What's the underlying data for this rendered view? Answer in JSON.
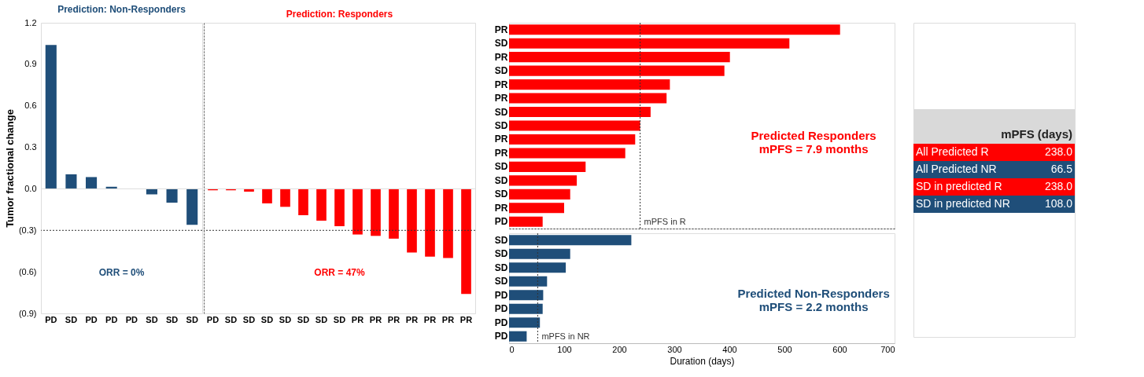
{
  "chart_data": [
    {
      "type": "bar",
      "title": "Prediction: Non-Responders",
      "ylabel": "Tumor fractional change",
      "categories": [
        "PD",
        "SD",
        "PD",
        "PD",
        "PD",
        "SD",
        "SD",
        "SD"
      ],
      "values": [
        1.04,
        0.105,
        0.085,
        0.015,
        0,
        -0.04,
        -0.1,
        -0.26
      ],
      "colors": [
        "#1f4e79",
        "#1f4e79",
        "#1f4e79",
        "#1f4e79",
        "#1f4e79",
        "#1f4e79",
        "#1f4e79",
        "#1f4e79"
      ],
      "ylim": [
        -0.9,
        1.2
      ],
      "yticks": [
        1.2,
        0.9,
        0.6,
        0.3,
        {
          "value": 0,
          "label": "0.0"
        },
        {
          "value": -0.3,
          "label": "(0.3)"
        },
        {
          "value": -0.6,
          "label": "(0.6)"
        },
        {
          "value": -0.9,
          "label": "(0.9)"
        }
      ],
      "ref_lines": [
        {
          "axis": "y",
          "value": -0.3,
          "line_style": "dotted"
        }
      ],
      "annotations": [
        "ORR = 0%"
      ]
    },
    {
      "type": "bar",
      "title": "Prediction: Responders",
      "categories": [
        "PD",
        "SD",
        "SD",
        "SD",
        "SD",
        "SD",
        "SD",
        "SD",
        "PR",
        "PR",
        "PR",
        "PR",
        "PR",
        "PR",
        "PR"
      ],
      "values": [
        -0.01,
        -0.01,
        -0.02,
        -0.105,
        -0.13,
        -0.19,
        -0.23,
        -0.27,
        -0.33,
        -0.34,
        -0.36,
        -0.46,
        -0.49,
        -0.5,
        -0.76
      ],
      "colors": [
        "#ff0000",
        "#ff0000",
        "#ff0000",
        "#ff0000",
        "#ff0000",
        "#ff0000",
        "#ff0000",
        "#ff0000",
        "#ff0000",
        "#ff0000",
        "#ff0000",
        "#ff0000",
        "#ff0000",
        "#ff0000",
        "#ff0000"
      ],
      "ylim": [
        -0.9,
        1.2
      ],
      "tick_labels": "x",
      "ref_lines": [
        {
          "axis": "y",
          "value": -0.3,
          "line_style": "dotted"
        }
      ],
      "annotations": [
        "ORR = 47%"
      ]
    },
    {
      "type": "bar",
      "orientation": "horizontal",
      "categories": [
        "PR",
        "SD",
        "PR",
        "SD",
        "PR",
        "PR",
        "SD",
        "SD",
        "PR",
        "PR",
        "SD",
        "SD",
        "SD",
        "PR",
        "PD"
      ],
      "values": [
        601,
        509,
        401,
        391,
        292,
        286,
        257,
        238,
        229,
        211,
        139,
        123,
        111,
        100,
        61
      ],
      "color": "#ff0000",
      "xlim": [
        0,
        700
      ],
      "xticks": [
        0,
        100,
        200,
        300,
        400,
        500,
        600,
        700
      ],
      "tick_labels": "y",
      "ref_lines": [
        {
          "axis": "x",
          "value": 238,
          "label": "mPFS in R",
          "line_style": "dotted"
        }
      ],
      "annotations": [
        "Predicted Responders\nmPFS = 7.9 months"
      ]
    },
    {
      "type": "bar",
      "orientation": "horizontal",
      "xlabel": "Duration (days)",
      "categories": [
        "SD",
        "SD",
        "SD",
        "SD",
        "PD",
        "PD",
        "PD",
        "PD"
      ],
      "values": [
        222,
        111,
        103,
        69,
        62,
        61,
        56,
        32
      ],
      "color": "#1f4e79",
      "xlim": [
        0,
        700
      ],
      "xticks": [
        0,
        100,
        200,
        300,
        400,
        500,
        600,
        700
      ],
      "ref_lines": [
        {
          "axis": "x",
          "value": 52,
          "label": "mPFS in NR",
          "line_style": "dotted"
        }
      ],
      "annotations": [
        "Predicted Non-Responders\nmPFS = 2.2 months"
      ]
    },
    {
      "type": "other",
      "title": "mPFS (days)",
      "categories": [
        "All Predicted R",
        "All Predicted NR",
        "SD in predicted R",
        "SD in predicted NR"
      ],
      "values": [
        238.0,
        66.5,
        238.0,
        108.0
      ],
      "value_labels": [
        "238.0",
        "66.5",
        "238.0",
        "108.0"
      ],
      "colors": [
        "#ff0000",
        "#1f4e79",
        "#ff0000",
        "#1f4e79"
      ]
    }
  ]
}
